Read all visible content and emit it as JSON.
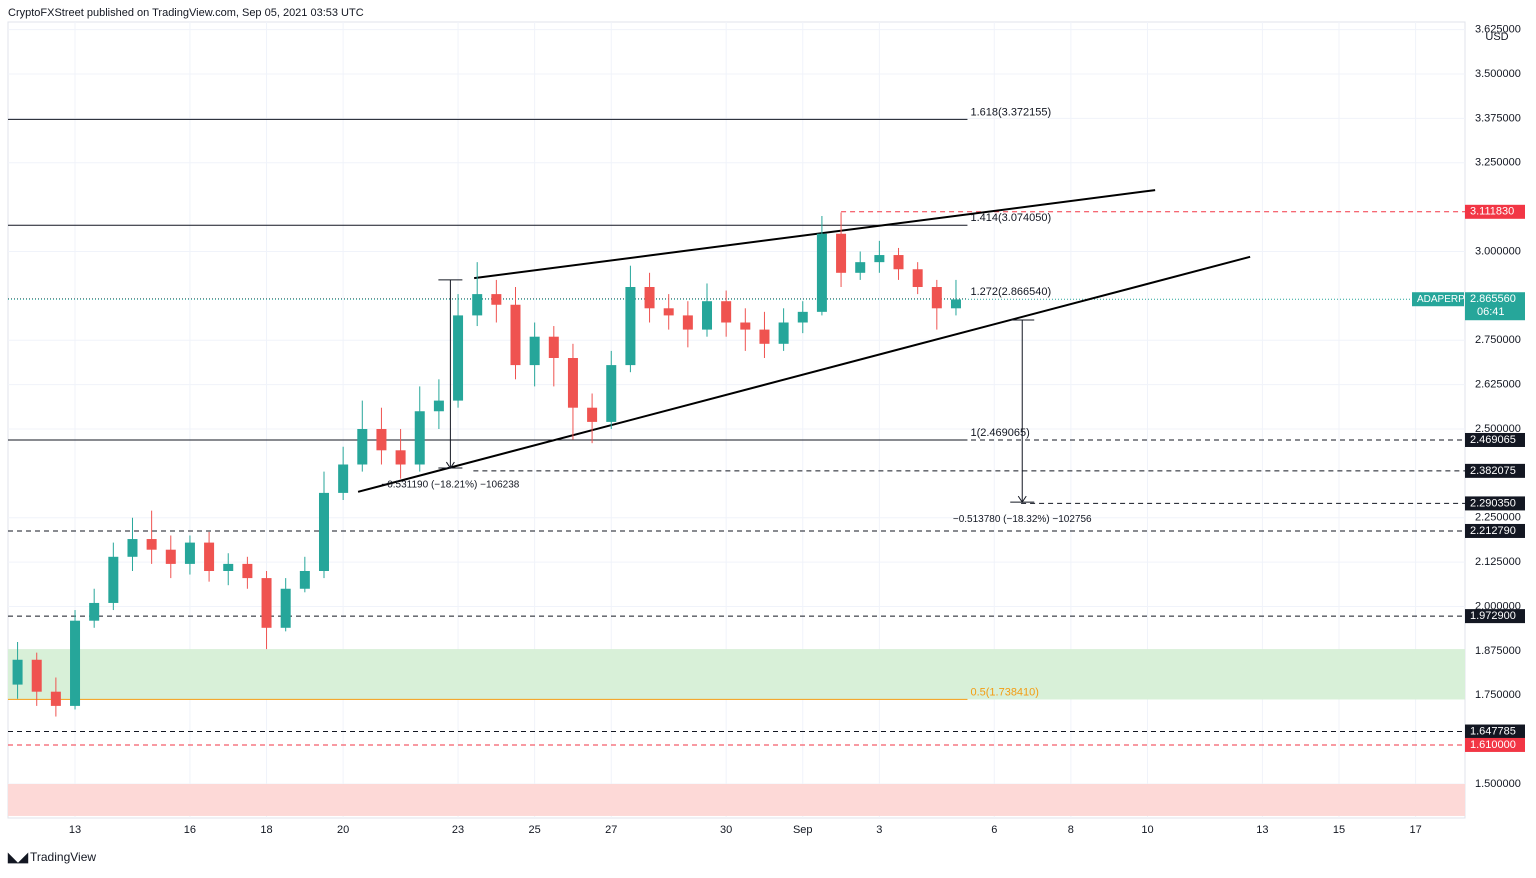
{
  "chart_data": {
    "type": "candlestick",
    "title": "CryptoFXStreet published on TradingView.com, Sep 05, 2021 03:53 UTC",
    "currency": "USD",
    "brand": "TradingView",
    "symbol": "ADAPERP",
    "countdown": "06:41",
    "x": [
      11.5,
      12,
      12.5,
      13,
      13.5,
      14,
      14.5,
      15,
      15.5,
      16,
      16.5,
      17,
      17.5,
      18,
      18.5,
      19,
      19.5,
      20,
      20.5,
      21,
      21.5,
      22,
      22.5,
      23,
      23.5,
      24,
      24.5,
      25,
      25.5,
      26,
      26.5,
      27,
      27.5,
      28,
      28.5,
      29,
      29.5,
      30,
      30.5,
      31,
      31.5,
      32,
      32.5,
      33,
      33.5,
      34,
      34.5,
      35,
      35.5,
      36
    ],
    "open": [
      1.78,
      1.85,
      1.76,
      1.72,
      1.96,
      2.01,
      2.14,
      2.19,
      2.16,
      2.12,
      2.18,
      2.1,
      2.12,
      2.08,
      1.94,
      2.05,
      2.1,
      2.32,
      2.4,
      2.5,
      2.44,
      2.4,
      2.55,
      2.58,
      2.82,
      2.88,
      2.85,
      2.68,
      2.76,
      2.7,
      2.56,
      2.52,
      2.68,
      2.9,
      2.84,
      2.82,
      2.78,
      2.86,
      2.8,
      2.78,
      2.74,
      2.8,
      2.83,
      3.05,
      2.94,
      2.97,
      2.99,
      2.95,
      2.9,
      2.84
    ],
    "high": [
      1.9,
      1.87,
      1.8,
      1.99,
      2.05,
      2.18,
      2.25,
      2.27,
      2.2,
      2.2,
      2.21,
      2.15,
      2.14,
      2.1,
      2.08,
      2.14,
      2.38,
      2.45,
      2.58,
      2.56,
      2.5,
      2.62,
      2.64,
      2.88,
      2.97,
      2.92,
      2.9,
      2.8,
      2.79,
      2.74,
      2.6,
      2.72,
      2.96,
      2.94,
      2.88,
      2.86,
      2.91,
      2.89,
      2.84,
      2.83,
      2.84,
      2.86,
      3.1,
      3.11,
      3.0,
      3.03,
      3.01,
      2.97,
      2.92,
      2.92
    ],
    "low": [
      1.74,
      1.72,
      1.69,
      1.71,
      1.94,
      1.99,
      2.1,
      2.12,
      2.08,
      2.09,
      2.07,
      2.06,
      2.05,
      1.88,
      1.93,
      2.04,
      2.08,
      2.3,
      2.38,
      2.4,
      2.36,
      2.38,
      2.5,
      2.56,
      2.79,
      2.8,
      2.64,
      2.62,
      2.62,
      2.47,
      2.46,
      2.5,
      2.66,
      2.8,
      2.78,
      2.73,
      2.76,
      2.76,
      2.72,
      2.7,
      2.72,
      2.77,
      2.82,
      2.9,
      2.92,
      2.94,
      2.92,
      2.88,
      2.78,
      2.82
    ],
    "close": [
      1.85,
      1.76,
      1.72,
      1.96,
      2.01,
      2.14,
      2.19,
      2.16,
      2.12,
      2.18,
      2.1,
      2.12,
      2.08,
      1.94,
      2.05,
      2.1,
      2.32,
      2.4,
      2.5,
      2.44,
      2.4,
      2.55,
      2.58,
      2.82,
      2.88,
      2.85,
      2.68,
      2.76,
      2.7,
      2.56,
      2.52,
      2.68,
      2.9,
      2.84,
      2.82,
      2.78,
      2.86,
      2.8,
      2.78,
      2.74,
      2.8,
      2.83,
      3.05,
      2.94,
      2.97,
      2.99,
      2.95,
      2.9,
      2.84,
      2.865
    ],
    "up_color": "#26a69a",
    "down_color": "#ef5350",
    "xlim": [
      11.25,
      49.29
    ],
    "ylim": [
      1.4042,
      3.6465
    ],
    "xticks": [
      13,
      16,
      18,
      20,
      23,
      25,
      27,
      30,
      {
        "value": 32,
        "label": "Sep"
      },
      {
        "value": 34,
        "label": "3"
      },
      {
        "value": 37,
        "label": "6"
      },
      {
        "value": 39,
        "label": "8"
      },
      {
        "value": 41,
        "label": "10"
      },
      {
        "value": 44,
        "label": "13"
      },
      {
        "value": 46,
        "label": "15"
      },
      {
        "value": 48,
        "label": "17"
      }
    ],
    "yticks": [
      {
        "value": 1.5,
        "label": "1.500000"
      },
      {
        "value": 1.75,
        "label": "1.750000"
      },
      {
        "value": 1.875,
        "label": "1.875000"
      },
      {
        "value": 2.0,
        "label": "2.000000"
      },
      {
        "value": 2.125,
        "label": "2.125000"
      },
      {
        "value": 2.25,
        "label": "2.250000"
      },
      {
        "value": 2.5,
        "label": "2.500000"
      },
      {
        "value": 2.625,
        "label": "2.625000"
      },
      {
        "value": 2.75,
        "label": "2.750000"
      },
      {
        "value": 3.0,
        "label": "3.000000"
      },
      {
        "value": 3.25,
        "label": "3.250000"
      },
      {
        "value": 3.375,
        "label": "3.375000"
      },
      {
        "value": 3.5,
        "label": "3.500000"
      },
      {
        "value": 3.625,
        "label": "3.625000"
      }
    ],
    "grid": true,
    "zones": [
      {
        "low": 1.738,
        "high": 1.88,
        "color": "#d8f0d8"
      },
      {
        "low": 1.41,
        "high": 1.5,
        "color": "#fdd9d7"
      }
    ],
    "fib_end": 36.3,
    "fib": [
      {
        "value": 3.372155,
        "label": "1.618(3.372155)",
        "color": "#131722"
      },
      {
        "value": 3.07405,
        "label": "1.414(3.074050)",
        "color": "#131722"
      },
      {
        "value": 2.86654,
        "label": "1.272(2.866540)",
        "color": "#131722"
      },
      {
        "value": 2.469065,
        "label": "1(2.469065)",
        "color": "#131722"
      },
      {
        "value": 1.73841,
        "label": "0.5(1.738410)",
        "color": "#f39c12"
      }
    ],
    "levels": [
      {
        "value": 3.11183,
        "label": "3.111830",
        "color": "#f23645",
        "from": 33
      },
      {
        "value": 2.86556,
        "label": "2.865560",
        "color": "#26a69a"
      },
      {
        "value": 2.469065,
        "label": "2.469065",
        "color": "#131722"
      },
      {
        "value": 2.382075,
        "label": "2.382075",
        "color": "#131722",
        "from": 23.4
      },
      {
        "value": 2.29035,
        "label": "2.290350",
        "color": "#131722",
        "from": 37.7
      },
      {
        "value": 2.21279,
        "label": "2.212790",
        "color": "#131722"
      },
      {
        "value": 1.9729,
        "label": "1.972900",
        "color": "#131722"
      },
      {
        "value": 1.647785,
        "label": "1.647785",
        "color": "#131722"
      },
      {
        "value": 1.61,
        "label": "1.610000",
        "color": "#f23645"
      }
    ],
    "trendlines": [
      {
        "x": [
          23.42,
          41.2
        ],
        "y": [
          2.925,
          3.173
        ]
      },
      {
        "x": [
          20.39,
          43.68
        ],
        "y": [
          2.323,
          2.985
        ]
      }
    ],
    "measures": [
      {
        "x": 22.8,
        "from": 2.92,
        "to": 2.39,
        "label": "−0.531190 (−18.21%) −106238"
      },
      {
        "x": 37.73,
        "from": 2.807,
        "to": 2.294,
        "label": "−0.513780 (−18.32%) −102756"
      }
    ]
  }
}
